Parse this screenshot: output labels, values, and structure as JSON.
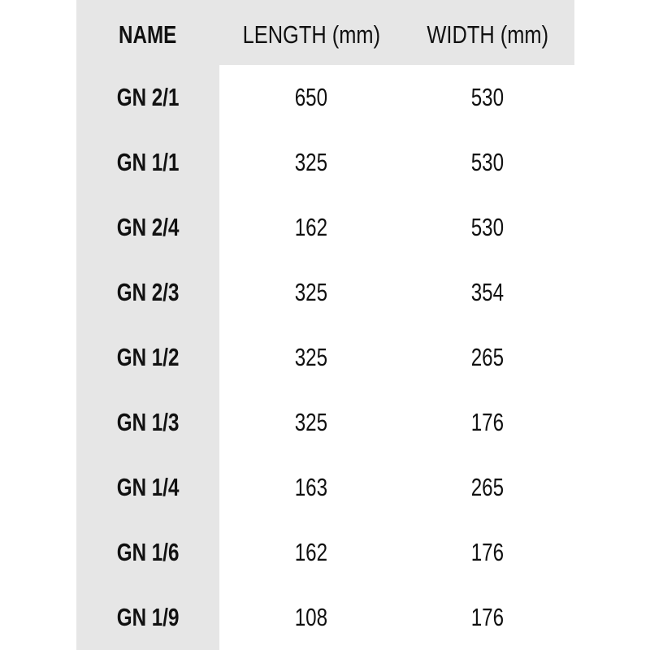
{
  "table": {
    "headers": [
      "NAME",
      "LENGTH (mm)",
      "WIDTH (mm)"
    ],
    "rows": [
      [
        "GN 2/1",
        "650",
        "530"
      ],
      [
        "GN 1/1",
        "325",
        "530"
      ],
      [
        "GN 2/4",
        "162",
        "530"
      ],
      [
        "GN 2/3",
        "325",
        "354"
      ],
      [
        "GN 1/2",
        "325",
        "265"
      ],
      [
        "GN 1/3",
        "325",
        "176"
      ],
      [
        "GN 1/4",
        "163",
        "265"
      ],
      [
        "GN 1/6",
        "162",
        "176"
      ],
      [
        "GN 1/9",
        "108",
        "176"
      ]
    ]
  },
  "colors": {
    "header_background": "#e6e6e6",
    "text": "#111111"
  }
}
